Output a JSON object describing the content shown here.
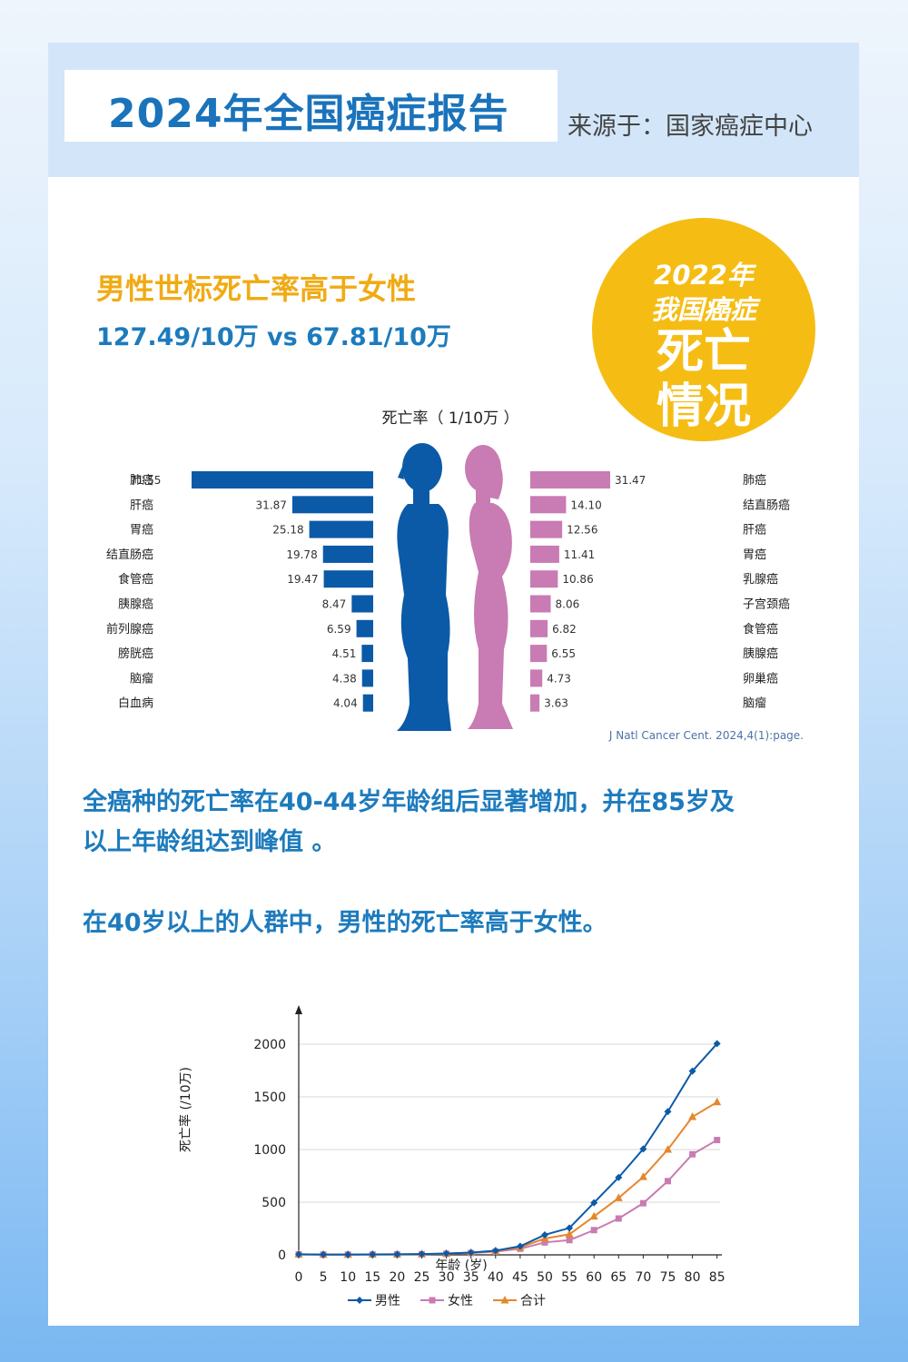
{
  "header": {
    "title": "2024年全国癌症报告",
    "source": "来源于：国家癌症中心"
  },
  "badge": {
    "line1": "2022年",
    "line2": "我国癌症",
    "line3": "死亡",
    "line4": "情况"
  },
  "section1": {
    "heading": "男性世标死亡率高于女性",
    "values": "127.49/10万 vs 67.81/10万"
  },
  "section2": {
    "paragraph1_line1": "全癌种的死亡率在40-44岁年龄组后显著增加，并在85岁及",
    "paragraph1_line2": "以上年龄组达到峰值 。",
    "paragraph2": "在40岁以上的人群中，男性的死亡率高于女性。"
  },
  "colors": {
    "male": "#0b5aa8",
    "female": "#c97bb3",
    "total": "#e5872c",
    "accent_blue": "#1d7bbd",
    "accent_yellow": "#f5bd14"
  },
  "chart_data": [
    {
      "type": "bar",
      "title": "死亡率（ 1/10万 ）",
      "citation": "J Natl Cancer Cent. 2024,4(1):page.",
      "series": [
        {
          "name": "男性",
          "categories": [
            "肺癌",
            "肝癌",
            "胃癌",
            "结直肠癌",
            "食管癌",
            "胰腺癌",
            "前列腺癌",
            "膀胱癌",
            "脑瘤",
            "白血病"
          ],
          "values": [
            71.55,
            31.87,
            25.18,
            19.78,
            19.47,
            8.47,
            6.59,
            4.51,
            4.38,
            4.04
          ]
        },
        {
          "name": "女性",
          "categories": [
            "肺癌",
            "结直肠癌",
            "肝癌",
            "胃癌",
            "乳腺癌",
            "子宫颈癌",
            "食管癌",
            "胰腺癌",
            "卵巢癌",
            "脑瘤"
          ],
          "values": [
            31.47,
            14.1,
            12.56,
            11.41,
            10.86,
            8.06,
            6.82,
            6.55,
            4.73,
            3.63
          ]
        }
      ]
    },
    {
      "type": "line",
      "xlabel": "年龄 (岁)",
      "ylabel": "死亡率 (/10万)",
      "x": [
        0,
        5,
        10,
        15,
        20,
        25,
        30,
        35,
        40,
        45,
        50,
        55,
        60,
        65,
        70,
        75,
        80,
        85
      ],
      "ylim": [
        0,
        2000
      ],
      "yticks": [
        0,
        500,
        1000,
        1500,
        2000
      ],
      "series": [
        {
          "name": "男性",
          "values": [
            5,
            3,
            3,
            4,
            5,
            8,
            13,
            22,
            40,
            82,
            190,
            255,
            495,
            735,
            1005,
            1360,
            1745,
            2005
          ]
        },
        {
          "name": "女性",
          "values": [
            4,
            2,
            2,
            3,
            4,
            6,
            10,
            17,
            30,
            58,
            118,
            140,
            235,
            345,
            490,
            700,
            955,
            1090
          ]
        },
        {
          "name": "合计",
          "values": [
            5,
            3,
            3,
            4,
            5,
            7,
            12,
            20,
            36,
            72,
            155,
            195,
            365,
            540,
            740,
            1000,
            1310,
            1450
          ]
        }
      ]
    }
  ]
}
